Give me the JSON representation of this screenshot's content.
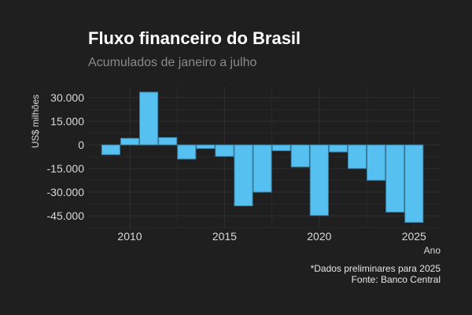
{
  "chart_data": {
    "type": "bar",
    "title": "Fluxo financeiro do Brasil",
    "subtitle": "Acumulados de janeiro a julho",
    "xlabel": "Ano",
    "ylabel": "US$ milhões",
    "x": [
      2009,
      2010,
      2011,
      2012,
      2013,
      2014,
      2015,
      2016,
      2017,
      2018,
      2019,
      2020,
      2021,
      2022,
      2023,
      2024,
      2025
    ],
    "values": [
      -6200,
      4200,
      33500,
      4700,
      -9000,
      -2300,
      -7300,
      -38700,
      -30000,
      -3700,
      -14000,
      -44800,
      -4500,
      -15000,
      -22500,
      -42700,
      -49200
    ],
    "xlim": [
      2007.8,
      2026.4
    ],
    "ylim": [
      -53000,
      37000
    ],
    "x_ticks": [
      "2010",
      "2015",
      "2020",
      "2025"
    ],
    "x_tick_values": [
      2010,
      2015,
      2020,
      2025
    ],
    "y_ticks": [
      "30.000",
      "15.000",
      "0",
      "-15.000",
      "-30.000",
      "-45.000"
    ],
    "y_tick_values": [
      30000,
      15000,
      0,
      -15000,
      -30000,
      -45000
    ],
    "grid": true,
    "colors": {
      "bar": "#56c1f0",
      "bar_stroke": "#3a7ea0",
      "background": "#1f1f1f",
      "grid": "#2f2f2f"
    },
    "caption_lines": [
      "*Dados preliminares para 2025",
      "Fonte: Banco Central"
    ]
  }
}
